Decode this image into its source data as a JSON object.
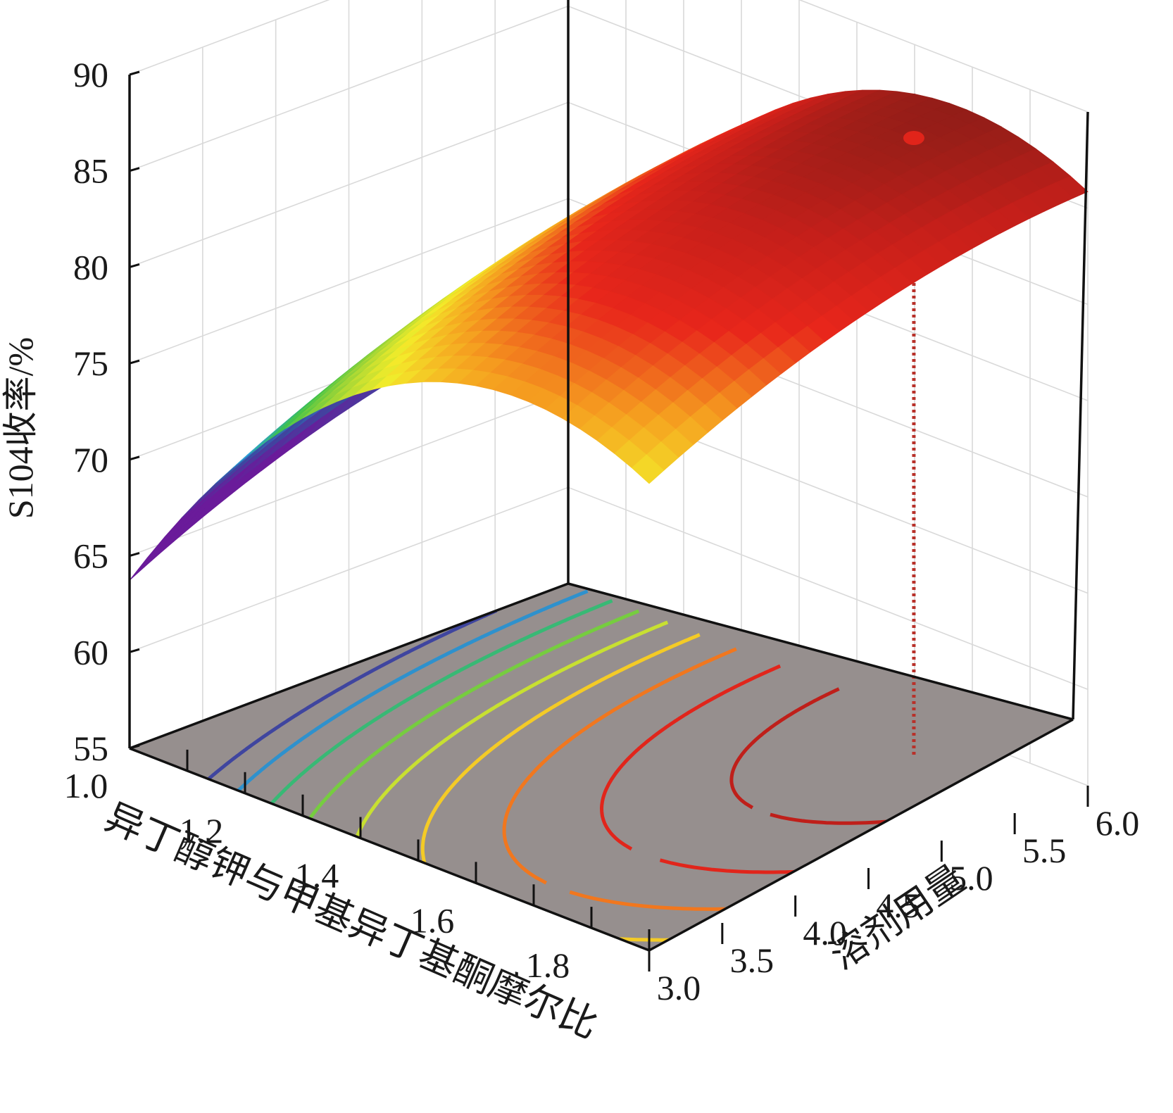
{
  "chart_data": {
    "type": "surface3d",
    "xlabel": "异丁醇钾与甲基异丁基酮摩尔比",
    "ylabel": "溶剂用量",
    "zlabel": "S104收率/%",
    "x_ticks": [
      "1.0",
      "1.2",
      "1.4",
      "1.6",
      "1.8"
    ],
    "y_ticks": [
      "3.0",
      "3.5",
      "4.0",
      "4.5",
      "5.0",
      "5.5",
      "6.0"
    ],
    "z_ticks": [
      "55",
      "60",
      "65",
      "70",
      "75",
      "80",
      "85",
      "90"
    ],
    "xlim": [
      1.0,
      1.9
    ],
    "ylim": [
      3.0,
      6.0
    ],
    "zlim": [
      55,
      90
    ],
    "color_scale": [
      "#6a1b9a",
      "#3a4aa0",
      "#2ba3d8",
      "#3ec24a",
      "#9bd437",
      "#f4ec2a",
      "#f59a1f",
      "#e8261b",
      "#c51f1a",
      "#8a1d17"
    ],
    "surface_samples": [
      {
        "x": 1.0,
        "y": 3.0,
        "z": 68.3
      },
      {
        "x": 1.0,
        "y": 4.5,
        "z": 72.5
      },
      {
        "x": 1.0,
        "y": 6.0,
        "z": 74.0
      },
      {
        "x": 1.4,
        "y": 3.0,
        "z": 80.5
      },
      {
        "x": 1.4,
        "y": 6.0,
        "z": 85.0
      },
      {
        "x": 1.9,
        "y": 3.0,
        "z": 79.5
      },
      {
        "x": 1.9,
        "y": 6.0,
        "z": 87.5
      }
    ],
    "optimum_point": {
      "x": 1.7,
      "y": 5.6,
      "z": 87.6
    },
    "contour_levels": [
      70,
      72,
      74,
      76,
      78,
      80,
      82,
      84,
      86
    ],
    "floor_color": "#968f8e",
    "grid": true
  }
}
